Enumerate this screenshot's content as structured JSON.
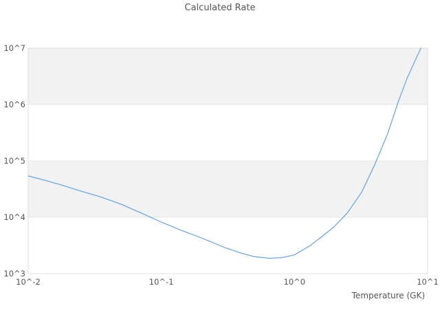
{
  "title": "Calculated Rate",
  "colors": {
    "line": "#6fa8dc",
    "band": "#f2f2f2",
    "gridline": "#e7e7e7",
    "border": "#dcdcdc",
    "text": "#555555",
    "background": "#ffffff"
  },
  "chart_data": {
    "type": "line",
    "title": "Calculated Rate",
    "xlabel": "Temperature (GK)",
    "ylabel": "",
    "x_scale": "log",
    "y_scale": "log",
    "xlim": [
      0.01,
      10
    ],
    "ylim": [
      1000,
      10000000
    ],
    "x_tick_values": [
      0.01,
      0.1,
      1,
      10
    ],
    "x_tick_labels": [
      "10^-2",
      "10^-1",
      "10^0",
      "10^1"
    ],
    "y_tick_values": [
      1000,
      10000,
      100000,
      1000000,
      10000000
    ],
    "y_tick_labels": [
      "10^3",
      "10^4",
      "10^5",
      "10^6",
      "10^7"
    ],
    "grid": "horizontal decade bands, alternating shading",
    "legend_position": "none",
    "shaded_decade_bands": [
      [
        1000000,
        10000000
      ],
      [
        10000,
        100000
      ]
    ],
    "series": [
      {
        "name": "calculated rate",
        "color": "#6fa8dc",
        "x": [
          0.01,
          0.013,
          0.018,
          0.025,
          0.035,
          0.05,
          0.07,
          0.1,
          0.14,
          0.2,
          0.3,
          0.4,
          0.5,
          0.65,
          0.8,
          1.0,
          1.3,
          1.6,
          2.0,
          2.5,
          3.2,
          4.0,
          5.0,
          6.0,
          7.0,
          8.0,
          8.9
        ],
        "y": [
          54000,
          46000,
          37000,
          29000,
          23000,
          17000,
          12000,
          8200,
          5900,
          4300,
          2900,
          2300,
          2000,
          1870,
          1920,
          2150,
          3100,
          4500,
          6900,
          12000,
          28000,
          85000,
          300000,
          1100000,
          2900000,
          5800000,
          10000000
        ]
      }
    ]
  }
}
